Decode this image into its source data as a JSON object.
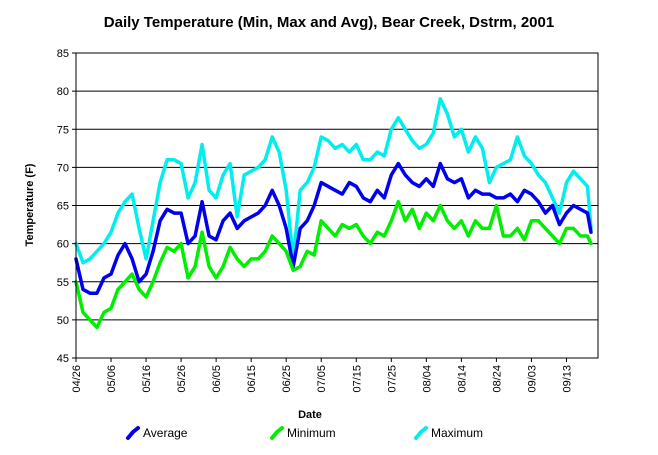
{
  "chart_data": {
    "type": "line",
    "title": "Daily Temperature (Min, Max and Avg), Bear Creek, Dstrm, 2001",
    "xlabel": "Date",
    "ylabel": "Temperature (F)",
    "ylim": [
      45,
      85
    ],
    "yticks": [
      "45",
      "50",
      "55",
      "60",
      "65",
      "70",
      "75",
      "80",
      "85"
    ],
    "xlim": [
      "2001-04-26",
      "2001-09-22"
    ],
    "xticks": [
      {
        "date": "2001-04-26",
        "label": "04/26"
      },
      {
        "date": "2001-05-06",
        "label": "05/06"
      },
      {
        "date": "2001-05-16",
        "label": "05/16"
      },
      {
        "date": "2001-05-26",
        "label": "05/26"
      },
      {
        "date": "2001-06-05",
        "label": "06/05"
      },
      {
        "date": "2001-06-15",
        "label": "06/15"
      },
      {
        "date": "2001-06-25",
        "label": "06/25"
      },
      {
        "date": "2001-07-05",
        "label": "07/05"
      },
      {
        "date": "2001-07-15",
        "label": "07/15"
      },
      {
        "date": "2001-07-25",
        "label": "07/25"
      },
      {
        "date": "2001-08-04",
        "label": "08/04"
      },
      {
        "date": "2001-08-14",
        "label": "08/14"
      },
      {
        "date": "2001-08-24",
        "label": "08/24"
      },
      {
        "date": "2001-09-03",
        "label": "09/03"
      },
      {
        "date": "2001-09-13",
        "label": "09/13"
      }
    ],
    "grid": "horizontal",
    "legend_position": "bottom",
    "series": [
      {
        "name": "Average",
        "color": "#0000ee",
        "points": [
          [
            "2001-04-26",
            58
          ],
          [
            "2001-04-28",
            54
          ],
          [
            "2001-04-30",
            53.5
          ],
          [
            "2001-05-02",
            53.5
          ],
          [
            "2001-05-04",
            55.5
          ],
          [
            "2001-05-06",
            56
          ],
          [
            "2001-05-08",
            58.5
          ],
          [
            "2001-05-10",
            60
          ],
          [
            "2001-05-12",
            58
          ],
          [
            "2001-05-14",
            55
          ],
          [
            "2001-05-16",
            56
          ],
          [
            "2001-05-18",
            59
          ],
          [
            "2001-05-20",
            63
          ],
          [
            "2001-05-22",
            64.5
          ],
          [
            "2001-05-24",
            64
          ],
          [
            "2001-05-26",
            64
          ],
          [
            "2001-05-28",
            60
          ],
          [
            "2001-05-30",
            61
          ],
          [
            "2001-06-01",
            65.5
          ],
          [
            "2001-06-03",
            61
          ],
          [
            "2001-06-05",
            60.5
          ],
          [
            "2001-06-07",
            63
          ],
          [
            "2001-06-09",
            64
          ],
          [
            "2001-06-11",
            62
          ],
          [
            "2001-06-13",
            63
          ],
          [
            "2001-06-15",
            63.5
          ],
          [
            "2001-06-17",
            64
          ],
          [
            "2001-06-19",
            65
          ],
          [
            "2001-06-21",
            67
          ],
          [
            "2001-06-23",
            65
          ],
          [
            "2001-06-25",
            62
          ],
          [
            "2001-06-27",
            57
          ],
          [
            "2001-06-29",
            62
          ],
          [
            "2001-07-01",
            63
          ],
          [
            "2001-07-03",
            65
          ],
          [
            "2001-07-05",
            68
          ],
          [
            "2001-07-07",
            67.5
          ],
          [
            "2001-07-09",
            67
          ],
          [
            "2001-07-11",
            66.5
          ],
          [
            "2001-07-13",
            68
          ],
          [
            "2001-07-15",
            67.5
          ],
          [
            "2001-07-17",
            66
          ],
          [
            "2001-07-19",
            65.5
          ],
          [
            "2001-07-21",
            67
          ],
          [
            "2001-07-23",
            66
          ],
          [
            "2001-07-25",
            69
          ],
          [
            "2001-07-27",
            70.5
          ],
          [
            "2001-07-29",
            69
          ],
          [
            "2001-07-31",
            68
          ],
          [
            "2001-08-02",
            67.5
          ],
          [
            "2001-08-04",
            68.5
          ],
          [
            "2001-08-06",
            67.5
          ],
          [
            "2001-08-08",
            70.5
          ],
          [
            "2001-08-10",
            68.5
          ],
          [
            "2001-08-12",
            68
          ],
          [
            "2001-08-14",
            68.5
          ],
          [
            "2001-08-16",
            66
          ],
          [
            "2001-08-18",
            67
          ],
          [
            "2001-08-20",
            66.5
          ],
          [
            "2001-08-22",
            66.5
          ],
          [
            "2001-08-24",
            66
          ],
          [
            "2001-08-26",
            66
          ],
          [
            "2001-08-28",
            66.5
          ],
          [
            "2001-08-30",
            65.5
          ],
          [
            "2001-09-01",
            67
          ],
          [
            "2001-09-03",
            66.5
          ],
          [
            "2001-09-05",
            65.5
          ],
          [
            "2001-09-07",
            64
          ],
          [
            "2001-09-09",
            65
          ],
          [
            "2001-09-11",
            62.5
          ],
          [
            "2001-09-13",
            64
          ],
          [
            "2001-09-15",
            65
          ],
          [
            "2001-09-17",
            64.5
          ],
          [
            "2001-09-19",
            64
          ],
          [
            "2001-09-20",
            61.5
          ]
        ]
      },
      {
        "name": "Minimum",
        "color": "#00ee00",
        "points": [
          [
            "2001-04-26",
            55
          ],
          [
            "2001-04-28",
            51
          ],
          [
            "2001-04-30",
            50
          ],
          [
            "2001-05-02",
            49
          ],
          [
            "2001-05-04",
            51
          ],
          [
            "2001-05-06",
            51.5
          ],
          [
            "2001-05-08",
            54
          ],
          [
            "2001-05-10",
            55
          ],
          [
            "2001-05-12",
            56
          ],
          [
            "2001-05-14",
            54
          ],
          [
            "2001-05-16",
            53
          ],
          [
            "2001-05-18",
            55
          ],
          [
            "2001-05-20",
            57.5
          ],
          [
            "2001-05-22",
            59.5
          ],
          [
            "2001-05-24",
            59
          ],
          [
            "2001-05-26",
            60
          ],
          [
            "2001-05-28",
            55.5
          ],
          [
            "2001-05-30",
            57
          ],
          [
            "2001-06-01",
            61.5
          ],
          [
            "2001-06-03",
            57
          ],
          [
            "2001-06-05",
            55.5
          ],
          [
            "2001-06-07",
            57
          ],
          [
            "2001-06-09",
            59.5
          ],
          [
            "2001-06-11",
            58
          ],
          [
            "2001-06-13",
            57
          ],
          [
            "2001-06-15",
            58
          ],
          [
            "2001-06-17",
            58
          ],
          [
            "2001-06-19",
            59
          ],
          [
            "2001-06-21",
            61
          ],
          [
            "2001-06-23",
            60
          ],
          [
            "2001-06-25",
            59
          ],
          [
            "2001-06-27",
            56.5
          ],
          [
            "2001-06-29",
            57
          ],
          [
            "2001-07-01",
            59
          ],
          [
            "2001-07-03",
            58.5
          ],
          [
            "2001-07-05",
            63
          ],
          [
            "2001-07-07",
            62
          ],
          [
            "2001-07-09",
            61
          ],
          [
            "2001-07-11",
            62.5
          ],
          [
            "2001-07-13",
            62
          ],
          [
            "2001-07-15",
            62.5
          ],
          [
            "2001-07-17",
            61
          ],
          [
            "2001-07-19",
            60
          ],
          [
            "2001-07-21",
            61.5
          ],
          [
            "2001-07-23",
            61
          ],
          [
            "2001-07-25",
            63
          ],
          [
            "2001-07-27",
            65.5
          ],
          [
            "2001-07-29",
            63
          ],
          [
            "2001-07-31",
            64.5
          ],
          [
            "2001-08-02",
            62
          ],
          [
            "2001-08-04",
            64
          ],
          [
            "2001-08-06",
            63
          ],
          [
            "2001-08-08",
            65
          ],
          [
            "2001-08-10",
            63
          ],
          [
            "2001-08-12",
            62
          ],
          [
            "2001-08-14",
            63
          ],
          [
            "2001-08-16",
            61
          ],
          [
            "2001-08-18",
            63
          ],
          [
            "2001-08-20",
            62
          ],
          [
            "2001-08-22",
            62
          ],
          [
            "2001-08-24",
            65
          ],
          [
            "2001-08-26",
            61
          ],
          [
            "2001-08-28",
            61
          ],
          [
            "2001-08-30",
            62
          ],
          [
            "2001-09-01",
            60.5
          ],
          [
            "2001-09-03",
            63
          ],
          [
            "2001-09-05",
            63
          ],
          [
            "2001-09-07",
            62
          ],
          [
            "2001-09-09",
            61
          ],
          [
            "2001-09-11",
            60
          ],
          [
            "2001-09-13",
            62
          ],
          [
            "2001-09-15",
            62
          ],
          [
            "2001-09-17",
            61
          ],
          [
            "2001-09-19",
            61
          ],
          [
            "2001-09-20",
            60
          ]
        ]
      },
      {
        "name": "Maximum",
        "color": "#00eeee",
        "points": [
          [
            "2001-04-26",
            60
          ],
          [
            "2001-04-28",
            57.5
          ],
          [
            "2001-04-30",
            58
          ],
          [
            "2001-05-02",
            59
          ],
          [
            "2001-05-04",
            60
          ],
          [
            "2001-05-06",
            61.5
          ],
          [
            "2001-05-08",
            64
          ],
          [
            "2001-05-10",
            65.5
          ],
          [
            "2001-05-12",
            66.5
          ],
          [
            "2001-05-14",
            62
          ],
          [
            "2001-05-16",
            58
          ],
          [
            "2001-05-18",
            63
          ],
          [
            "2001-05-20",
            68
          ],
          [
            "2001-05-22",
            71
          ],
          [
            "2001-05-24",
            71
          ],
          [
            "2001-05-26",
            70.5
          ],
          [
            "2001-05-28",
            66
          ],
          [
            "2001-05-30",
            68
          ],
          [
            "2001-06-01",
            73
          ],
          [
            "2001-06-03",
            67
          ],
          [
            "2001-06-05",
            66
          ],
          [
            "2001-06-07",
            69
          ],
          [
            "2001-06-09",
            70.5
          ],
          [
            "2001-06-11",
            63.5
          ],
          [
            "2001-06-13",
            69
          ],
          [
            "2001-06-15",
            69.5
          ],
          [
            "2001-06-17",
            70
          ],
          [
            "2001-06-19",
            71
          ],
          [
            "2001-06-21",
            74
          ],
          [
            "2001-06-23",
            72
          ],
          [
            "2001-06-25",
            67
          ],
          [
            "2001-06-27",
            58
          ],
          [
            "2001-06-29",
            67
          ],
          [
            "2001-07-01",
            68
          ],
          [
            "2001-07-03",
            70
          ],
          [
            "2001-07-05",
            74
          ],
          [
            "2001-07-07",
            73.5
          ],
          [
            "2001-07-09",
            72.5
          ],
          [
            "2001-07-11",
            73
          ],
          [
            "2001-07-13",
            72
          ],
          [
            "2001-07-15",
            73
          ],
          [
            "2001-07-17",
            71
          ],
          [
            "2001-07-19",
            71
          ],
          [
            "2001-07-21",
            72
          ],
          [
            "2001-07-23",
            71.5
          ],
          [
            "2001-07-25",
            75
          ],
          [
            "2001-07-27",
            76.5
          ],
          [
            "2001-07-29",
            75
          ],
          [
            "2001-07-31",
            73.5
          ],
          [
            "2001-08-02",
            72.5
          ],
          [
            "2001-08-04",
            73
          ],
          [
            "2001-08-06",
            74.5
          ],
          [
            "2001-08-08",
            79
          ],
          [
            "2001-08-10",
            77
          ],
          [
            "2001-08-12",
            74
          ],
          [
            "2001-08-14",
            75
          ],
          [
            "2001-08-16",
            72
          ],
          [
            "2001-08-18",
            74
          ],
          [
            "2001-08-20",
            72.5
          ],
          [
            "2001-08-22",
            68
          ],
          [
            "2001-08-24",
            70
          ],
          [
            "2001-08-26",
            70.5
          ],
          [
            "2001-08-28",
            71
          ],
          [
            "2001-08-30",
            74
          ],
          [
            "2001-09-01",
            71.5
          ],
          [
            "2001-09-03",
            70.5
          ],
          [
            "2001-09-05",
            69
          ],
          [
            "2001-09-07",
            68
          ],
          [
            "2001-09-09",
            66
          ],
          [
            "2001-09-11",
            64
          ],
          [
            "2001-09-13",
            68
          ],
          [
            "2001-09-15",
            69.5
          ],
          [
            "2001-09-17",
            68.5
          ],
          [
            "2001-09-19",
            67.5
          ],
          [
            "2001-09-20",
            62
          ]
        ]
      }
    ]
  }
}
